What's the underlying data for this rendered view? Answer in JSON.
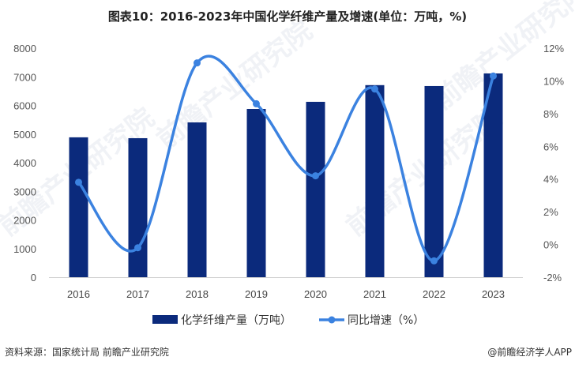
{
  "title": "图表10：2016-2023年中国化学纤维产量及增速(单位：万吨，%)",
  "footer": {
    "source": "资料来源：国家统计局 前瞻产业研究院",
    "credit": "@前瞻经济学人APP"
  },
  "watermark": "前瞻产业研究院",
  "colors": {
    "bar": "#0b2a7c",
    "line": "#3b82e0",
    "axis": "#d0d0d0",
    "tick_text": "#555555"
  },
  "chart_data": {
    "type": "bar+line",
    "title": "图表10：2016-2023年中国化学纤维产量及增速(单位：万吨，%)",
    "categories": [
      "2016",
      "2017",
      "2018",
      "2019",
      "2020",
      "2021",
      "2022",
      "2023"
    ],
    "series": [
      {
        "name": "化学纤维产量（万吨）",
        "type": "bar",
        "axis": "left",
        "values": [
          4886,
          4856,
          5407,
          5876,
          6126,
          6709,
          6677,
          7117
        ]
      },
      {
        "name": "同比增速（%）",
        "type": "line",
        "axis": "right",
        "smooth": true,
        "values": [
          3.8,
          -0.2,
          11.1,
          8.6,
          4.2,
          9.5,
          -1.0,
          10.3
        ]
      }
    ],
    "left_axis": {
      "min": 0,
      "max": 8000,
      "step": 1000,
      "ticks": [
        "0",
        "1000",
        "2000",
        "3000",
        "4000",
        "5000",
        "6000",
        "7000",
        "8000"
      ]
    },
    "right_axis": {
      "min": -2,
      "max": 12,
      "step": 2,
      "ticks": [
        "-2%",
        "0%",
        "2%",
        "4%",
        "6%",
        "8%",
        "10%",
        "12%"
      ]
    },
    "xlabel": "",
    "ylabel": "",
    "grid": false,
    "legend_position": "bottom"
  }
}
